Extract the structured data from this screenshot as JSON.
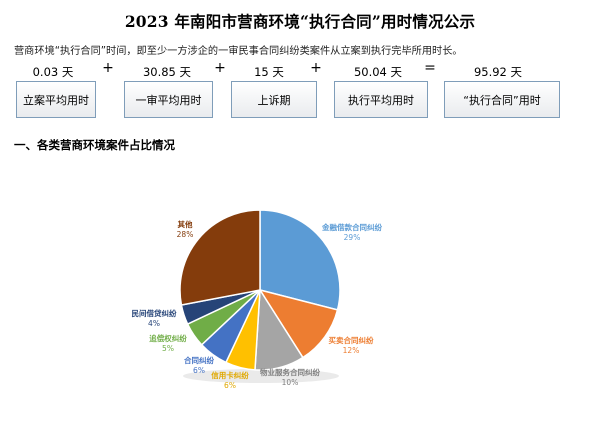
{
  "page": {
    "title": "2023 年南阳市营商环境“执行合同”用时情况公示",
    "subtitle": "营商环境“执行合同”时间，即至少一方涉企的一审民事合同纠纷类案件从立案到执行完毕所用时长。",
    "section_title": "一、各类营商环境案件占比情况"
  },
  "formula": {
    "values": [
      "0.03 天",
      "30.85 天",
      "15 天",
      "50.04 天",
      "95.92 天"
    ],
    "operators": [
      "+",
      "+",
      "+",
      "="
    ],
    "labels": [
      "立案平均用时",
      "一审平均用时",
      "上诉期",
      "执行平均用时",
      "“执行合同”用时"
    ]
  },
  "chart_data": {
    "type": "pie",
    "categories": [
      "金融借款合同纠纷",
      "买卖合同纠纷",
      "物业服务合同纠纷",
      "信用卡纠纷",
      "合同纠纷",
      "追偿权纠纷",
      "民间借贷纠纷",
      "其他"
    ],
    "values": [
      29,
      12,
      10,
      6,
      6,
      5,
      4,
      28
    ],
    "labels": [
      "29%",
      "12%",
      "10%",
      "6%",
      "6%",
      "5%",
      "4%",
      "28%"
    ],
    "colors": [
      "#5b9bd5",
      "#ed7d31",
      "#a5a5a5",
      "#ffc000",
      "#4472c4",
      "#70ad47",
      "#264478",
      "#843c0c"
    ],
    "label_colors": [
      "#5b9bd5",
      "#ed7d31",
      "#7f7f7f",
      "#e0a800",
      "#4472c4",
      "#70ad47",
      "#264478",
      "#843c0c"
    ]
  }
}
